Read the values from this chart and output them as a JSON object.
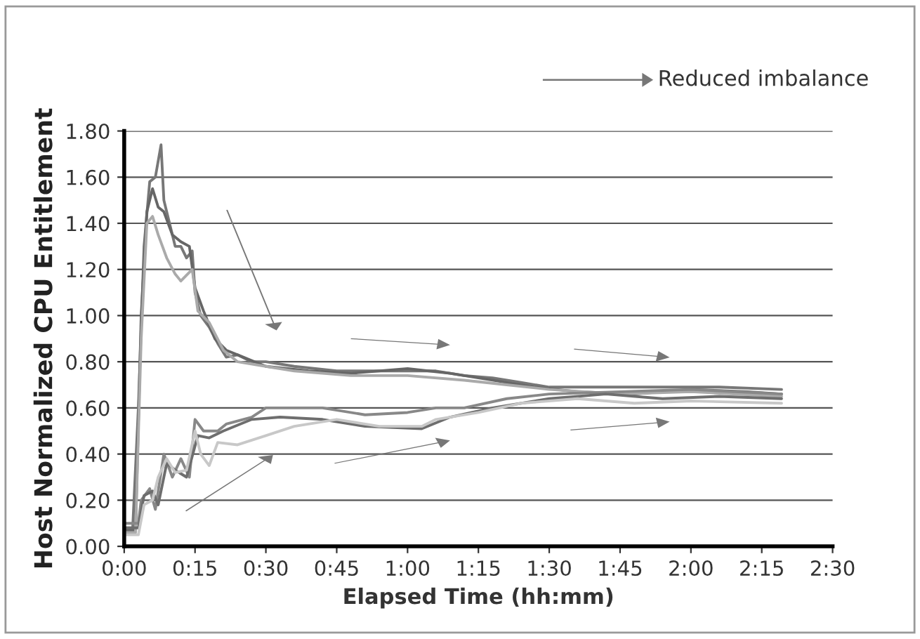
{
  "chart_data": {
    "type": "line",
    "xlabel": "Elapsed Time (hh:mm)",
    "ylabel": "Host Normalized CPU Entitlement",
    "annotations": [
      "Reduced imbalance"
    ],
    "series": [
      {
        "color": "#777777",
        "x": [
          0,
          0.03,
          0.05,
          0.07,
          0.09,
          0.11,
          0.13,
          0.14,
          0.16,
          0.18,
          0.2,
          0.22,
          0.24,
          0.25,
          0.27,
          0.3,
          0.33,
          0.36,
          0.4,
          0.45,
          0.5,
          0.6,
          0.75,
          1.0,
          1.1,
          1.2,
          1.3,
          1.4,
          1.5,
          1.7,
          1.9,
          2.1,
          2.32
        ],
        "values": [
          0.08,
          0.08,
          0.6,
          1.3,
          1.58,
          1.6,
          1.74,
          1.5,
          1.4,
          1.3,
          1.3,
          1.25,
          1.28,
          1.1,
          1.0,
          0.95,
          0.88,
          0.82,
          0.83,
          0.8,
          0.8,
          0.78,
          0.76,
          0.76,
          0.76,
          0.74,
          0.73,
          0.71,
          0.69,
          0.69,
          0.69,
          0.69,
          0.68
        ]
      },
      {
        "color": "#666666",
        "x": [
          0,
          0.04,
          0.06,
          0.08,
          0.1,
          0.12,
          0.14,
          0.17,
          0.2,
          0.23,
          0.25,
          0.28,
          0.32,
          0.36,
          0.42,
          0.5,
          0.65,
          0.8,
          1.0,
          1.15,
          1.3,
          1.45,
          1.6,
          1.8,
          2.0,
          2.2,
          2.32
        ],
        "values": [
          0.07,
          0.07,
          1.0,
          1.45,
          1.55,
          1.47,
          1.45,
          1.35,
          1.32,
          1.3,
          1.12,
          1.02,
          0.9,
          0.85,
          0.82,
          0.78,
          0.76,
          0.75,
          0.77,
          0.75,
          0.72,
          0.69,
          0.67,
          0.66,
          0.68,
          0.67,
          0.66
        ]
      },
      {
        "color": "#aaaaaa",
        "x": [
          0,
          0.04,
          0.06,
          0.08,
          0.1,
          0.12,
          0.15,
          0.18,
          0.2,
          0.24,
          0.26,
          0.3,
          0.35,
          0.4,
          0.5,
          0.6,
          0.8,
          1.0,
          1.2,
          1.35,
          1.5,
          1.75,
          2.0,
          2.32
        ],
        "values": [
          0.06,
          0.06,
          0.9,
          1.4,
          1.43,
          1.35,
          1.25,
          1.18,
          1.15,
          1.2,
          1.02,
          0.97,
          0.85,
          0.8,
          0.78,
          0.76,
          0.74,
          0.74,
          0.72,
          0.7,
          0.68,
          0.66,
          0.67,
          0.65
        ]
      },
      {
        "color": "#888888",
        "x": [
          0,
          0.05,
          0.06,
          0.09,
          0.11,
          0.14,
          0.17,
          0.2,
          0.23,
          0.25,
          0.28,
          0.33,
          0.36,
          0.45,
          0.5,
          0.7,
          0.85,
          1.0,
          1.1,
          1.2,
          1.35,
          1.5,
          1.75,
          2.0,
          2.32
        ],
        "values": [
          0.1,
          0.1,
          0.2,
          0.25,
          0.16,
          0.4,
          0.3,
          0.38,
          0.3,
          0.55,
          0.5,
          0.5,
          0.53,
          0.56,
          0.6,
          0.6,
          0.57,
          0.58,
          0.6,
          0.6,
          0.64,
          0.66,
          0.67,
          0.68,
          0.66
        ]
      },
      {
        "color": "#6e6e6e",
        "x": [
          0,
          0.05,
          0.07,
          0.1,
          0.12,
          0.15,
          0.18,
          0.22,
          0.26,
          0.3,
          0.35,
          0.45,
          0.55,
          0.7,
          0.85,
          1.05,
          1.15,
          1.3,
          1.5,
          1.7,
          1.9,
          2.1,
          2.32
        ],
        "values": [
          0.08,
          0.08,
          0.22,
          0.24,
          0.18,
          0.36,
          0.33,
          0.3,
          0.48,
          0.47,
          0.5,
          0.55,
          0.56,
          0.55,
          0.52,
          0.51,
          0.56,
          0.6,
          0.64,
          0.66,
          0.64,
          0.65,
          0.64
        ]
      },
      {
        "color": "#c8c8c8",
        "x": [
          0,
          0.05,
          0.07,
          0.1,
          0.12,
          0.15,
          0.18,
          0.22,
          0.25,
          0.27,
          0.3,
          0.33,
          0.4,
          0.5,
          0.6,
          0.75,
          0.9,
          1.05,
          1.1,
          1.25,
          1.4,
          1.6,
          1.8,
          2.0,
          2.32
        ],
        "values": [
          0.05,
          0.05,
          0.18,
          0.2,
          0.3,
          0.38,
          0.32,
          0.33,
          0.5,
          0.4,
          0.35,
          0.45,
          0.44,
          0.48,
          0.52,
          0.55,
          0.52,
          0.52,
          0.55,
          0.58,
          0.62,
          0.64,
          0.62,
          0.63,
          0.62
        ]
      }
    ],
    "xlim": [
      0,
      2.5
    ],
    "xticks": [
      {
        "value": 0,
        "label": "0:00"
      },
      {
        "value": 0.25,
        "label": "0:15"
      },
      {
        "value": 0.5,
        "label": "0:30"
      },
      {
        "value": 0.75,
        "label": "0:45"
      },
      {
        "value": 1,
        "label": "1:00"
      },
      {
        "value": 1.25,
        "label": "1:15"
      },
      {
        "value": 1.5,
        "label": "1:30"
      },
      {
        "value": 1.75,
        "label": "1:45"
      },
      {
        "value": 2,
        "label": "2:00"
      },
      {
        "value": 2.25,
        "label": "2:15"
      },
      {
        "value": 2.5,
        "label": "2:30"
      }
    ],
    "ylim": [
      0,
      1.8
    ],
    "yticks": [
      {
        "value": 0,
        "label": "0.00"
      },
      {
        "value": 0.2,
        "label": "0.20"
      },
      {
        "value": 0.4,
        "label": "0.40"
      },
      {
        "value": 0.6,
        "label": "0.60"
      },
      {
        "value": 0.8,
        "label": "0.80"
      },
      {
        "value": 1.0,
        "label": "1.00"
      },
      {
        "value": 1.2,
        "label": "1.20"
      },
      {
        "value": 1.4,
        "label": "1.40"
      },
      {
        "value": 1.6,
        "label": "1.60"
      },
      {
        "value": 1.8,
        "label": "1.80"
      }
    ],
    "grid": "y",
    "legend": false,
    "marker": "none",
    "line_style": "solid"
  }
}
